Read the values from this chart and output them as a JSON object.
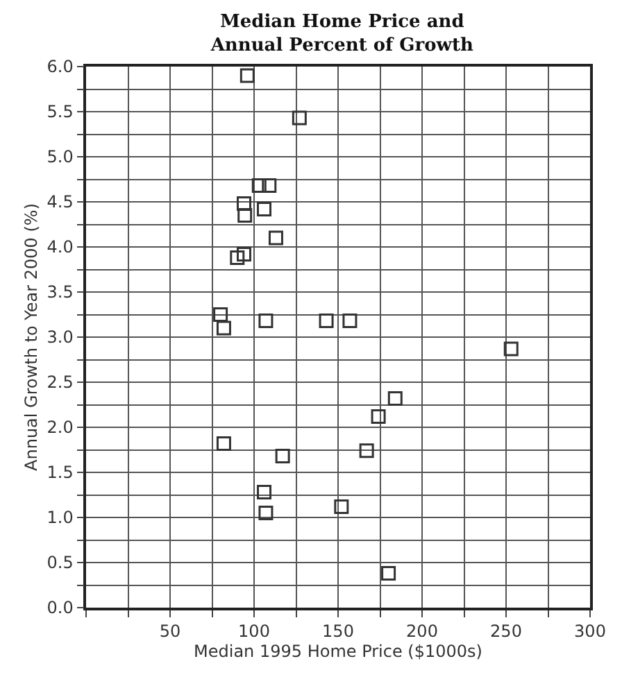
{
  "chart_data": {
    "type": "scatter",
    "title": "Median Home Price and\nAnnual Percent of Growth",
    "xlabel": "Median 1995 Home Price ($1000s)",
    "ylabel": "Annual Growth to Year 2000 (%)",
    "x": [
      96,
      127,
      103,
      109,
      94,
      106,
      94.5,
      113,
      90,
      94,
      80,
      82,
      107,
      143,
      157,
      253,
      184,
      174,
      167,
      117,
      82,
      106,
      107,
      152,
      180
    ],
    "values": [
      5.9,
      5.43,
      4.68,
      4.68,
      4.48,
      4.42,
      4.35,
      4.1,
      3.88,
      3.92,
      3.25,
      3.1,
      3.18,
      3.18,
      3.18,
      2.87,
      2.32,
      2.12,
      1.74,
      1.68,
      1.82,
      1.28,
      1.05,
      1.12,
      0.38
    ],
    "color": "#333333",
    "marker": "square",
    "grid": true,
    "xlim": [
      0,
      300
    ],
    "ylim": [
      0,
      6
    ],
    "xticks": [
      {
        "value": 0,
        "label": null
      },
      {
        "value": 25,
        "label": null
      },
      50,
      {
        "value": 75,
        "label": null
      },
      100,
      {
        "value": 125,
        "label": null
      },
      150,
      {
        "value": 175,
        "label": null
      },
      200,
      {
        "value": 225,
        "label": null
      },
      250,
      {
        "value": 275,
        "label": null
      },
      300
    ],
    "yticks": [
      {
        "value": 0,
        "label": "0.0"
      },
      {
        "value": 0.25,
        "label": null
      },
      {
        "value": 0.5,
        "label": "0.5"
      },
      {
        "value": 0.75,
        "label": null
      },
      {
        "value": 1,
        "label": "1.0"
      },
      {
        "value": 1.25,
        "label": null
      },
      {
        "value": 1.5,
        "label": "1.5"
      },
      {
        "value": 1.75,
        "label": null
      },
      {
        "value": 2,
        "label": "2.0"
      },
      {
        "value": 2.25,
        "label": null
      },
      {
        "value": 2.5,
        "label": "2.5"
      },
      {
        "value": 2.75,
        "label": null
      },
      {
        "value": 3,
        "label": "3.0"
      },
      {
        "value": 3.25,
        "label": null
      },
      {
        "value": 3.5,
        "label": "3.5"
      },
      {
        "value": 3.75,
        "label": null
      },
      {
        "value": 4,
        "label": "4.0"
      },
      {
        "value": 4.25,
        "label": null
      },
      {
        "value": 4.5,
        "label": "4.5"
      },
      {
        "value": 4.75,
        "label": null
      },
      {
        "value": 5,
        "label": "5.0"
      },
      {
        "value": 5.25,
        "label": null
      },
      {
        "value": 5.5,
        "label": "5.5"
      },
      {
        "value": 5.75,
        "label": null
      },
      {
        "value": 6,
        "label": "6.0"
      }
    ]
  }
}
